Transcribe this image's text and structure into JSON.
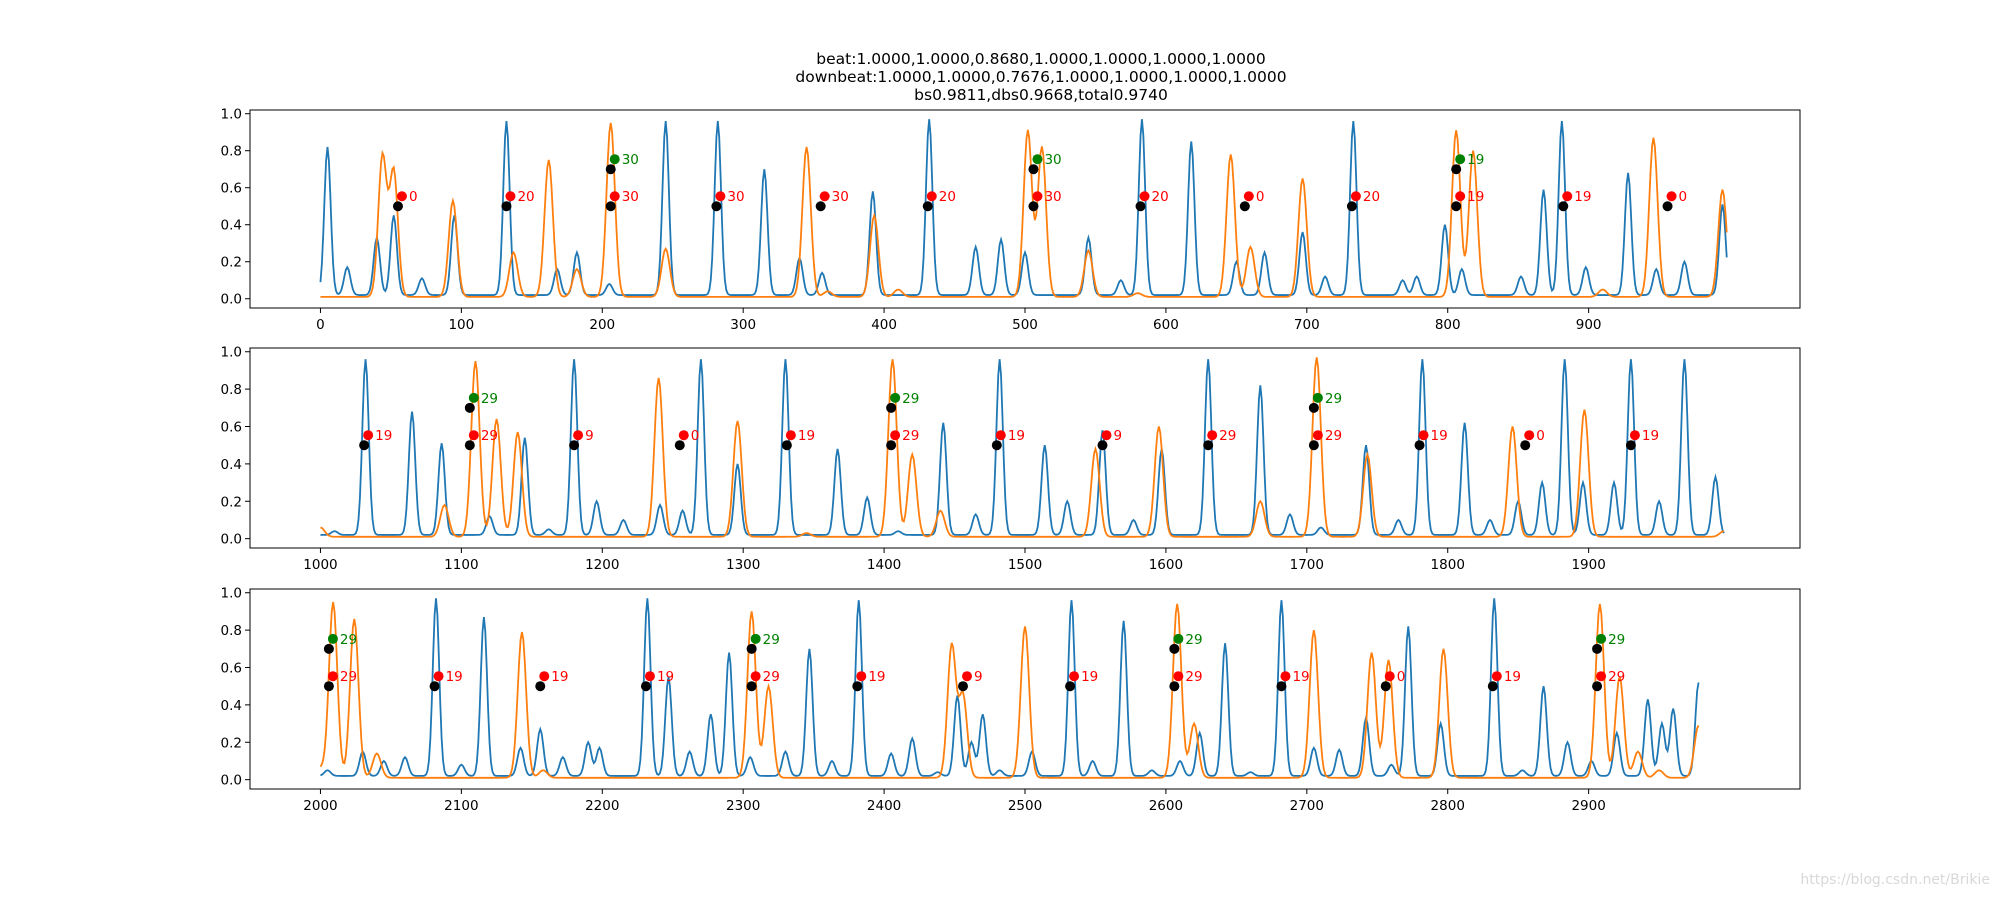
{
  "title_lines": [
    "beat:1.0000,1.0000,0.8680,1.0000,1.0000,1.0000,1.0000",
    "downbeat:1.0000,1.0000,0.7676,1.0000,1.0000,1.0000,1.0000",
    "bs0.9811,dbs0.9668,total0.9740"
  ],
  "watermark": "https://blog.csdn.net/Brikie",
  "chart_data": [
    {
      "type": "line",
      "title": "",
      "xlim": [
        -50,
        1050
      ],
      "ylim": [
        -0.05,
        1.02
      ],
      "xticks": [
        0,
        100,
        200,
        300,
        400,
        500,
        600,
        700,
        800,
        900
      ],
      "yticks": [
        0.0,
        0.2,
        0.4,
        0.6,
        0.8,
        1.0
      ],
      "series_colors": {
        "beat_activation": "#1f77b4",
        "downbeat_activation": "#ff7f0e"
      },
      "line_range": [
        0,
        998
      ],
      "beat_peaks": [
        [
          5,
          0.82
        ],
        [
          19,
          0.17
        ],
        [
          40,
          0.33
        ],
        [
          52,
          0.45
        ],
        [
          72,
          0.11
        ],
        [
          95,
          0.45
        ],
        [
          132,
          0.96
        ],
        [
          168,
          0.16
        ],
        [
          182,
          0.25
        ],
        [
          205,
          0.08
        ],
        [
          245,
          0.96
        ],
        [
          282,
          0.96
        ],
        [
          315,
          0.7
        ],
        [
          340,
          0.22
        ],
        [
          356,
          0.14
        ],
        [
          392,
          0.58
        ],
        [
          432,
          0.97
        ],
        [
          465,
          0.28
        ],
        [
          483,
          0.32
        ],
        [
          500,
          0.25
        ],
        [
          545,
          0.33
        ],
        [
          568,
          0.1
        ],
        [
          583,
          0.97
        ],
        [
          618,
          0.85
        ],
        [
          650,
          0.2
        ],
        [
          670,
          0.25
        ],
        [
          697,
          0.36
        ],
        [
          713,
          0.12
        ],
        [
          733,
          0.96
        ],
        [
          768,
          0.1
        ],
        [
          778,
          0.12
        ],
        [
          798,
          0.4
        ],
        [
          810,
          0.16
        ],
        [
          852,
          0.12
        ],
        [
          868,
          0.59
        ],
        [
          881,
          0.96
        ],
        [
          898,
          0.17
        ],
        [
          928,
          0.68
        ],
        [
          948,
          0.16
        ],
        [
          968,
          0.2
        ],
        [
          995,
          0.51
        ]
      ],
      "downbeat_peaks": [
        [
          44,
          0.77
        ],
        [
          52,
          0.69
        ],
        [
          94,
          0.53
        ],
        [
          137,
          0.25
        ],
        [
          162,
          0.75
        ],
        [
          182,
          0.16
        ],
        [
          206,
          0.95
        ],
        [
          245,
          0.27
        ],
        [
          345,
          0.82
        ],
        [
          360,
          0.04
        ],
        [
          393,
          0.45
        ],
        [
          410,
          0.05
        ],
        [
          502,
          0.91
        ],
        [
          512,
          0.82
        ],
        [
          545,
          0.26
        ],
        [
          580,
          0.03
        ],
        [
          646,
          0.78
        ],
        [
          660,
          0.28
        ],
        [
          697,
          0.65
        ],
        [
          806,
          0.91
        ],
        [
          818,
          0.8
        ],
        [
          910,
          0.05
        ],
        [
          946,
          0.87
        ],
        [
          995,
          0.59
        ]
      ],
      "markers": [
        {
          "x": 55,
          "y": 0.5,
          "label": "0",
          "kind": "red"
        },
        {
          "x": 132,
          "y": 0.5,
          "label": "20",
          "kind": "red"
        },
        {
          "x": 206,
          "y": 0.5,
          "label": "30",
          "kind": "red"
        },
        {
          "x": 206,
          "y": 0.7,
          "label": "30",
          "kind": "green"
        },
        {
          "x": 281,
          "y": 0.5,
          "label": "30",
          "kind": "red"
        },
        {
          "x": 355,
          "y": 0.5,
          "label": "30",
          "kind": "red"
        },
        {
          "x": 431,
          "y": 0.5,
          "label": "20",
          "kind": "red"
        },
        {
          "x": 506,
          "y": 0.5,
          "label": "30",
          "kind": "red"
        },
        {
          "x": 506,
          "y": 0.7,
          "label": "30",
          "kind": "green"
        },
        {
          "x": 582,
          "y": 0.5,
          "label": "20",
          "kind": "red"
        },
        {
          "x": 656,
          "y": 0.5,
          "label": "0",
          "kind": "red"
        },
        {
          "x": 732,
          "y": 0.5,
          "label": "20",
          "kind": "red"
        },
        {
          "x": 806,
          "y": 0.5,
          "label": "19",
          "kind": "red"
        },
        {
          "x": 806,
          "y": 0.7,
          "label": "19",
          "kind": "green"
        },
        {
          "x": 882,
          "y": 0.5,
          "label": "19",
          "kind": "red"
        },
        {
          "x": 956,
          "y": 0.5,
          "label": "0",
          "kind": "red"
        }
      ]
    },
    {
      "type": "line",
      "title": "",
      "xlim": [
        950,
        2050
      ],
      "ylim": [
        -0.05,
        1.02
      ],
      "xticks": [
        1000,
        1100,
        1200,
        1300,
        1400,
        1500,
        1600,
        1700,
        1800,
        1900
      ],
      "yticks": [
        0.0,
        0.2,
        0.4,
        0.6,
        0.8,
        1.0
      ],
      "series_colors": {
        "beat_activation": "#1f77b4",
        "downbeat_activation": "#ff7f0e"
      },
      "line_range": [
        1000,
        1996
      ],
      "beat_peaks": [
        [
          1010,
          0.04
        ],
        [
          1032,
          0.96
        ],
        [
          1065,
          0.68
        ],
        [
          1086,
          0.51
        ],
        [
          1120,
          0.12
        ],
        [
          1145,
          0.54
        ],
        [
          1162,
          0.05
        ],
        [
          1180,
          0.96
        ],
        [
          1196,
          0.2
        ],
        [
          1215,
          0.1
        ],
        [
          1241,
          0.18
        ],
        [
          1257,
          0.15
        ],
        [
          1270,
          0.96
        ],
        [
          1296,
          0.4
        ],
        [
          1330,
          0.96
        ],
        [
          1367,
          0.48
        ],
        [
          1388,
          0.22
        ],
        [
          1410,
          0.04
        ],
        [
          1442,
          0.62
        ],
        [
          1465,
          0.13
        ],
        [
          1482,
          0.96
        ],
        [
          1514,
          0.5
        ],
        [
          1530,
          0.2
        ],
        [
          1555,
          0.58
        ],
        [
          1577,
          0.1
        ],
        [
          1597,
          0.48
        ],
        [
          1630,
          0.96
        ],
        [
          1667,
          0.82
        ],
        [
          1688,
          0.13
        ],
        [
          1710,
          0.06
        ],
        [
          1742,
          0.5
        ],
        [
          1765,
          0.1
        ],
        [
          1782,
          0.96
        ],
        [
          1812,
          0.62
        ],
        [
          1830,
          0.1
        ],
        [
          1850,
          0.2
        ],
        [
          1867,
          0.3
        ],
        [
          1883,
          0.96
        ],
        [
          1896,
          0.3
        ],
        [
          1918,
          0.3
        ],
        [
          1930,
          0.96
        ],
        [
          1950,
          0.2
        ],
        [
          1968,
          0.96
        ],
        [
          1990,
          0.33
        ]
      ],
      "downbeat_peaks": [
        [
          1000,
          0.06
        ],
        [
          1088,
          0.18
        ],
        [
          1110,
          0.95
        ],
        [
          1125,
          0.64
        ],
        [
          1140,
          0.57
        ],
        [
          1240,
          0.86
        ],
        [
          1296,
          0.63
        ],
        [
          1345,
          0.03
        ],
        [
          1406,
          0.96
        ],
        [
          1420,
          0.45
        ],
        [
          1440,
          0.15
        ],
        [
          1550,
          0.48
        ],
        [
          1595,
          0.6
        ],
        [
          1667,
          0.2
        ],
        [
          1707,
          0.97
        ],
        [
          1743,
          0.45
        ],
        [
          1846,
          0.6
        ],
        [
          1897,
          0.69
        ],
        [
          1996,
          0.04
        ]
      ],
      "markers": [
        {
          "x": 1031,
          "y": 0.5,
          "label": "19",
          "kind": "red"
        },
        {
          "x": 1106,
          "y": 0.5,
          "label": "29",
          "kind": "red"
        },
        {
          "x": 1106,
          "y": 0.7,
          "label": "29",
          "kind": "green"
        },
        {
          "x": 1180,
          "y": 0.5,
          "label": "9",
          "kind": "red"
        },
        {
          "x": 1255,
          "y": 0.5,
          "label": "0",
          "kind": "red"
        },
        {
          "x": 1331,
          "y": 0.5,
          "label": "19",
          "kind": "red"
        },
        {
          "x": 1405,
          "y": 0.5,
          "label": "29",
          "kind": "red"
        },
        {
          "x": 1405,
          "y": 0.7,
          "label": "29",
          "kind": "green"
        },
        {
          "x": 1480,
          "y": 0.5,
          "label": "19",
          "kind": "red"
        },
        {
          "x": 1555,
          "y": 0.5,
          "label": "9",
          "kind": "red"
        },
        {
          "x": 1630,
          "y": 0.5,
          "label": "29",
          "kind": "red"
        },
        {
          "x": 1705,
          "y": 0.5,
          "label": "29",
          "kind": "red"
        },
        {
          "x": 1705,
          "y": 0.7,
          "label": "29",
          "kind": "green"
        },
        {
          "x": 1780,
          "y": 0.5,
          "label": "19",
          "kind": "red"
        },
        {
          "x": 1855,
          "y": 0.5,
          "label": "0",
          "kind": "red"
        },
        {
          "x": 1930,
          "y": 0.5,
          "label": "19",
          "kind": "red"
        }
      ]
    },
    {
      "type": "line",
      "title": "",
      "xlim": [
        1950,
        3050
      ],
      "ylim": [
        -0.05,
        1.02
      ],
      "xticks": [
        2000,
        2100,
        2200,
        2300,
        2400,
        2500,
        2600,
        2700,
        2800,
        2900
      ],
      "yticks": [
        0.0,
        0.2,
        0.4,
        0.6,
        0.8,
        1.0
      ],
      "series_colors": {
        "beat_activation": "#1f77b4",
        "downbeat_activation": "#ff7f0e"
      },
      "line_range": [
        2000,
        2978
      ],
      "beat_peaks": [
        [
          2005,
          0.05
        ],
        [
          2030,
          0.15
        ],
        [
          2045,
          0.1
        ],
        [
          2060,
          0.12
        ],
        [
          2082,
          0.97
        ],
        [
          2100,
          0.08
        ],
        [
          2116,
          0.87
        ],
        [
          2142,
          0.17
        ],
        [
          2156,
          0.27
        ],
        [
          2172,
          0.12
        ],
        [
          2190,
          0.2
        ],
        [
          2198,
          0.17
        ],
        [
          2232,
          0.97
        ],
        [
          2247,
          0.55
        ],
        [
          2262,
          0.15
        ],
        [
          2277,
          0.35
        ],
        [
          2290,
          0.68
        ],
        [
          2305,
          0.12
        ],
        [
          2330,
          0.15
        ],
        [
          2347,
          0.7
        ],
        [
          2363,
          0.1
        ],
        [
          2382,
          0.96
        ],
        [
          2405,
          0.14
        ],
        [
          2420,
          0.22
        ],
        [
          2438,
          0.04
        ],
        [
          2452,
          0.45
        ],
        [
          2462,
          0.2
        ],
        [
          2470,
          0.35
        ],
        [
          2482,
          0.05
        ],
        [
          2505,
          0.15
        ],
        [
          2533,
          0.96
        ],
        [
          2548,
          0.1
        ],
        [
          2570,
          0.85
        ],
        [
          2590,
          0.05
        ],
        [
          2610,
          0.1
        ],
        [
          2624,
          0.25
        ],
        [
          2642,
          0.73
        ],
        [
          2660,
          0.04
        ],
        [
          2682,
          0.96
        ],
        [
          2705,
          0.17
        ],
        [
          2723,
          0.16
        ],
        [
          2742,
          0.33
        ],
        [
          2760,
          0.08
        ],
        [
          2772,
          0.82
        ],
        [
          2795,
          0.3
        ],
        [
          2833,
          0.97
        ],
        [
          2853,
          0.05
        ],
        [
          2868,
          0.5
        ],
        [
          2885,
          0.2
        ],
        [
          2902,
          0.1
        ],
        [
          2920,
          0.25
        ],
        [
          2942,
          0.43
        ],
        [
          2952,
          0.3
        ],
        [
          2960,
          0.38
        ],
        [
          2978,
          0.52
        ]
      ],
      "downbeat_peaks": [
        [
          2000,
          0.06
        ],
        [
          2009,
          0.95
        ],
        [
          2024,
          0.86
        ],
        [
          2040,
          0.14
        ],
        [
          2143,
          0.79
        ],
        [
          2158,
          0.05
        ],
        [
          2306,
          0.9
        ],
        [
          2318,
          0.5
        ],
        [
          2448,
          0.72
        ],
        [
          2456,
          0.45
        ],
        [
          2500,
          0.82
        ],
        [
          2608,
          0.94
        ],
        [
          2620,
          0.3
        ],
        [
          2705,
          0.8
        ],
        [
          2746,
          0.68
        ],
        [
          2758,
          0.64
        ],
        [
          2797,
          0.7
        ],
        [
          2908,
          0.94
        ],
        [
          2922,
          0.55
        ],
        [
          2935,
          0.15
        ],
        [
          2950,
          0.05
        ],
        [
          2978,
          0.29
        ]
      ],
      "markers": [
        {
          "x": 2006,
          "y": 0.5,
          "label": "29",
          "kind": "red"
        },
        {
          "x": 2006,
          "y": 0.7,
          "label": "29",
          "kind": "green"
        },
        {
          "x": 2081,
          "y": 0.5,
          "label": "19",
          "kind": "red"
        },
        {
          "x": 2156,
          "y": 0.5,
          "label": "19",
          "kind": "red"
        },
        {
          "x": 2231,
          "y": 0.5,
          "label": "19",
          "kind": "red"
        },
        {
          "x": 2306,
          "y": 0.5,
          "label": "29",
          "kind": "red"
        },
        {
          "x": 2306,
          "y": 0.7,
          "label": "29",
          "kind": "green"
        },
        {
          "x": 2381,
          "y": 0.5,
          "label": "19",
          "kind": "red"
        },
        {
          "x": 2456,
          "y": 0.5,
          "label": "9",
          "kind": "red"
        },
        {
          "x": 2532,
          "y": 0.5,
          "label": "19",
          "kind": "red"
        },
        {
          "x": 2606,
          "y": 0.5,
          "label": "29",
          "kind": "red"
        },
        {
          "x": 2606,
          "y": 0.7,
          "label": "29",
          "kind": "green"
        },
        {
          "x": 2682,
          "y": 0.5,
          "label": "19",
          "kind": "red"
        },
        {
          "x": 2756,
          "y": 0.5,
          "label": "0",
          "kind": "red"
        },
        {
          "x": 2832,
          "y": 0.5,
          "label": "19",
          "kind": "red"
        },
        {
          "x": 2906,
          "y": 0.5,
          "label": "29",
          "kind": "red"
        },
        {
          "x": 2906,
          "y": 0.7,
          "label": "29",
          "kind": "green"
        }
      ]
    }
  ]
}
